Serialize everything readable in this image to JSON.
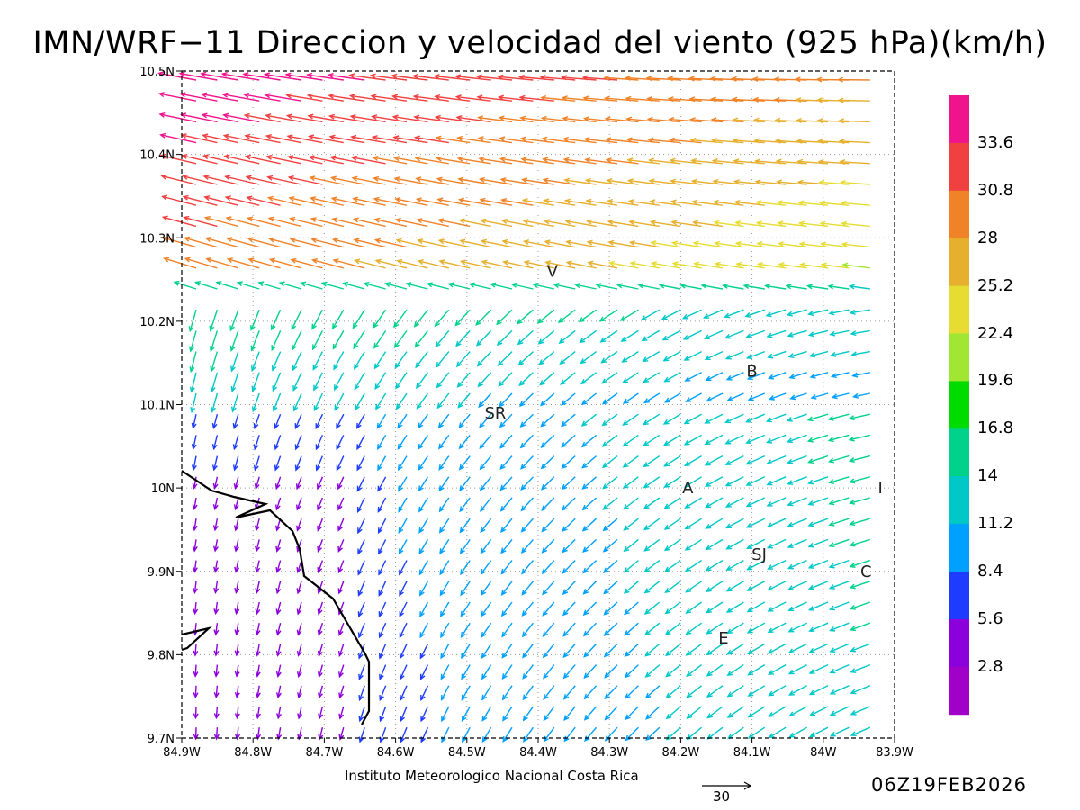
{
  "title": "IMN/WRF−11 Direccion y velocidad del viento (925 hPa)(km/h)",
  "credit": "Instituto Meteorologico Nacional Costa Rica",
  "reference_vector_label": "30",
  "timestamp": "06Z19FEB2026",
  "axes": {
    "x_ticks": [
      "84.9W",
      "84.8W",
      "84.7W",
      "84.6W",
      "84.5W",
      "84.4W",
      "84.3W",
      "84.2W",
      "84.1W",
      "84W",
      "83.9W"
    ],
    "y_ticks": [
      "10.5N",
      "10.4N",
      "10.3N",
      "10.2N",
      "10.1N",
      "10N",
      "9.9N",
      "9.8N",
      "9.7N"
    ]
  },
  "colorbar": {
    "labels": [
      "33.6",
      "30.8",
      "28",
      "25.2",
      "22.4",
      "19.6",
      "16.8",
      "14",
      "11.2",
      "8.4",
      "5.6",
      "2.8"
    ],
    "colors": [
      "#f0148c",
      "#f04040",
      "#f08228",
      "#e6af2d",
      "#e6dc32",
      "#a0e632",
      "#00dc00",
      "#00d28c",
      "#00c8c8",
      "#00a0ff",
      "#1e3cff",
      "#8c00dc",
      "#a000c8"
    ]
  },
  "places": [
    {
      "label": "V",
      "lon": -84.38,
      "lat": 10.26
    },
    {
      "label": "B",
      "lon": -84.1,
      "lat": 10.14
    },
    {
      "label": "SR",
      "lon": -84.46,
      "lat": 10.09
    },
    {
      "label": "A",
      "lon": -84.19,
      "lat": 10.0
    },
    {
      "label": "I",
      "lon": -83.92,
      "lat": 10.0
    },
    {
      "label": "SJ",
      "lon": -84.09,
      "lat": 9.92
    },
    {
      "label": "C",
      "lon": -83.94,
      "lat": 9.9
    },
    {
      "label": "E",
      "lon": -84.14,
      "lat": 9.82
    }
  ]
}
